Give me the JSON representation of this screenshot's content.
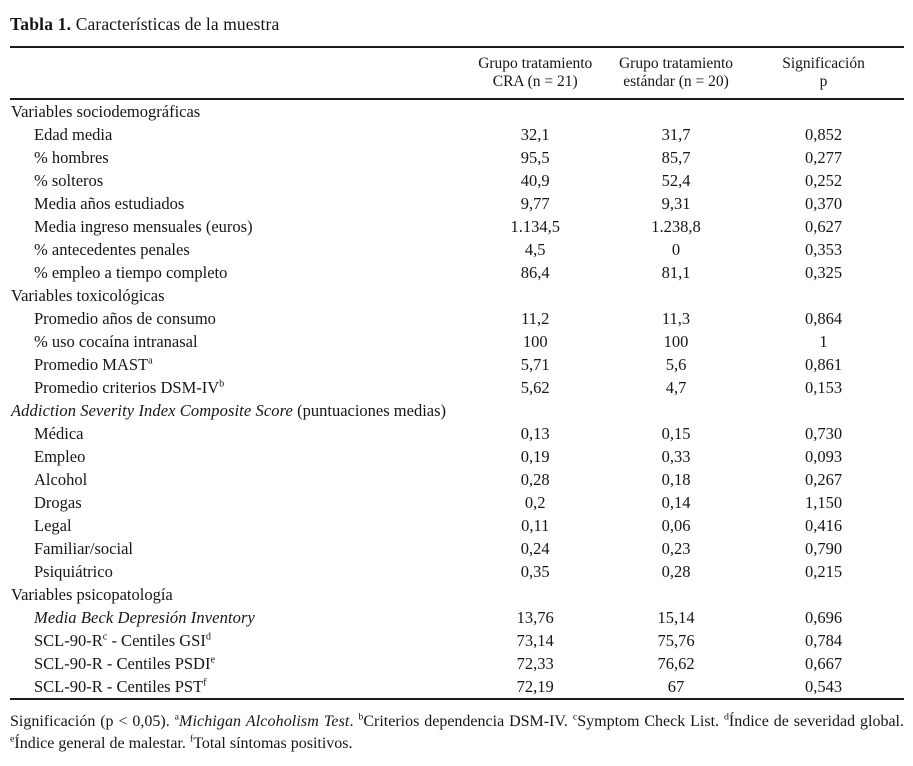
{
  "title": {
    "label": "Tabla 1.",
    "text": "Características de la muestra"
  },
  "table": {
    "header": {
      "col1": {
        "line1": "Grupo tratamiento",
        "line2": "CRA (n = 21)"
      },
      "col2": {
        "line1": "Grupo tratamiento",
        "line2": "estándar (n = 20)"
      },
      "col3": {
        "line1": "Significación",
        "line2": "p"
      }
    },
    "sections": [
      {
        "title": [
          {
            "text": "Variables sociodemográficas"
          }
        ],
        "rows": [
          {
            "label": [
              {
                "text": "Edad media"
              }
            ],
            "values": [
              "32,1",
              "31,7",
              "0,852"
            ]
          },
          {
            "label": [
              {
                "text": "% hombres"
              }
            ],
            "values": [
              "95,5",
              "85,7",
              "0,277"
            ]
          },
          {
            "label": [
              {
                "text": "% solteros"
              }
            ],
            "values": [
              "40,9",
              "52,4",
              "0,252"
            ]
          },
          {
            "label": [
              {
                "text": "Media años estudiados"
              }
            ],
            "values": [
              "9,77",
              "9,31",
              "0,370"
            ]
          },
          {
            "label": [
              {
                "text": "Media ingreso mensuales (euros)"
              }
            ],
            "values": [
              "1.134,5",
              "1.238,8",
              "0,627"
            ]
          },
          {
            "label": [
              {
                "text": "% antecedentes penales"
              }
            ],
            "values": [
              "4,5",
              "0",
              "0,353"
            ]
          },
          {
            "label": [
              {
                "text": "% empleo a tiempo completo"
              }
            ],
            "values": [
              "86,4",
              "81,1",
              "0,325"
            ]
          }
        ]
      },
      {
        "title": [
          {
            "text": "Variables toxicológicas"
          }
        ],
        "rows": [
          {
            "label": [
              {
                "text": "Promedio años de consumo"
              }
            ],
            "values": [
              "11,2",
              "11,3",
              "0,864"
            ]
          },
          {
            "label": [
              {
                "text": "% uso cocaína intranasal"
              }
            ],
            "values": [
              "100",
              "100",
              "1"
            ]
          },
          {
            "label": [
              {
                "text": "Promedio MAST"
              },
              {
                "text": "a",
                "style": "sup"
              }
            ],
            "values": [
              "5,71",
              "5,6",
              "0,861"
            ]
          },
          {
            "label": [
              {
                "text": "Promedio criterios DSM-IV"
              },
              {
                "text": "b",
                "style": "sup"
              }
            ],
            "values": [
              "5,62",
              "4,7",
              "0,153"
            ]
          }
        ]
      },
      {
        "title": [
          {
            "text": "Addiction Severity Index Composite Score",
            "style": "italic"
          },
          {
            "text": " (puntuaciones medias)"
          }
        ],
        "rows": [
          {
            "label": [
              {
                "text": "Médica"
              }
            ],
            "values": [
              "0,13",
              "0,15",
              "0,730"
            ]
          },
          {
            "label": [
              {
                "text": "Empleo"
              }
            ],
            "values": [
              "0,19",
              "0,33",
              "0,093"
            ]
          },
          {
            "label": [
              {
                "text": "Alcohol"
              }
            ],
            "values": [
              "0,28",
              "0,18",
              "0,267"
            ]
          },
          {
            "label": [
              {
                "text": "Drogas"
              }
            ],
            "values": [
              "0,2",
              "0,14",
              "1,150"
            ]
          },
          {
            "label": [
              {
                "text": "Legal"
              }
            ],
            "values": [
              "0,11",
              "0,06",
              "0,416"
            ]
          },
          {
            "label": [
              {
                "text": "Familiar/social"
              }
            ],
            "values": [
              "0,24",
              "0,23",
              "0,790"
            ]
          },
          {
            "label": [
              {
                "text": "Psiquiátrico"
              }
            ],
            "values": [
              "0,35",
              "0,28",
              "0,215"
            ]
          }
        ]
      },
      {
        "title": [
          {
            "text": "Variables psicopatología"
          }
        ],
        "rows": [
          {
            "label": [
              {
                "text": "Media Beck Depresión Inventory",
                "style": "italic"
              }
            ],
            "values": [
              "13,76",
              "15,14",
              "0,696"
            ]
          },
          {
            "label": [
              {
                "text": "SCL-90-R"
              },
              {
                "text": "c",
                "style": "sup"
              },
              {
                "text": " - Centiles GSI"
              },
              {
                "text": "d",
                "style": "sup"
              }
            ],
            "values": [
              "73,14",
              "75,76",
              "0,784"
            ]
          },
          {
            "label": [
              {
                "text": "SCL-90-R - Centiles PSDI"
              },
              {
                "text": "e",
                "style": "sup"
              }
            ],
            "values": [
              "72,33",
              "76,62",
              "0,667"
            ]
          },
          {
            "label": [
              {
                "text": "SCL-90-R - Centiles PST"
              },
              {
                "text": "f",
                "style": "sup"
              }
            ],
            "values": [
              "72,19",
              "67",
              "0,543"
            ]
          }
        ]
      }
    ]
  },
  "footnote": {
    "segments": [
      {
        "text": "Significación (p < 0,05). "
      },
      {
        "text": "a",
        "style": "sup"
      },
      {
        "text": "Michigan Alcoholism Test",
        "style": "italic"
      },
      {
        "text": ". "
      },
      {
        "text": "b",
        "style": "sup"
      },
      {
        "text": "Criterios dependencia DSM-IV. "
      },
      {
        "text": "c",
        "style": "sup"
      },
      {
        "text": "Symptom Check List. "
      },
      {
        "text": "d",
        "style": "sup"
      },
      {
        "text": "Índice de severidad global. "
      },
      {
        "text": "e",
        "style": "sup"
      },
      {
        "text": "Índice general de malestar. "
      },
      {
        "text": "f",
        "style": "sup"
      },
      {
        "text": "Total síntomas positivos."
      }
    ]
  }
}
